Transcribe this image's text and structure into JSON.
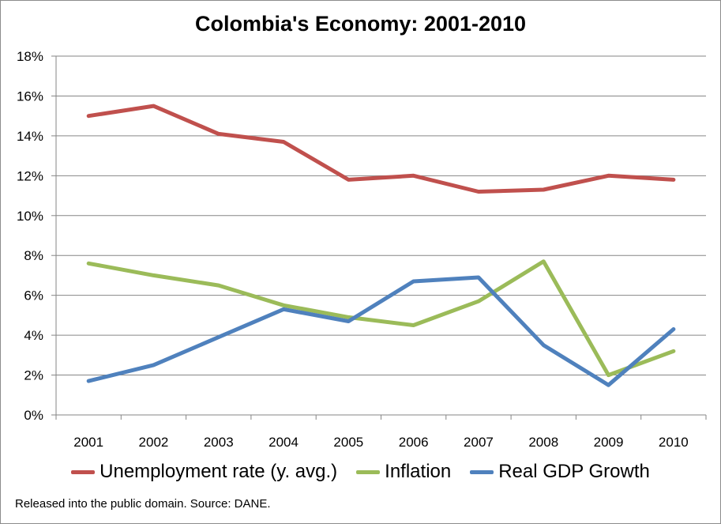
{
  "chart_data": {
    "type": "line",
    "title": "Colombia's Economy: 2001-2010",
    "categories": [
      "2001",
      "2002",
      "2003",
      "2004",
      "2005",
      "2006",
      "2007",
      "2008",
      "2009",
      "2010"
    ],
    "y_ticks": [
      "0%",
      "2%",
      "4%",
      "6%",
      "8%",
      "10%",
      "12%",
      "14%",
      "16%",
      "18%"
    ],
    "ylim": [
      0,
      18
    ],
    "y_unit": "%",
    "grid": true,
    "legend_position": "bottom",
    "series": [
      {
        "name": "Unemployment rate (y. avg.)",
        "color": "#c0504d",
        "values": [
          15.0,
          15.5,
          14.1,
          13.7,
          11.8,
          12.0,
          11.2,
          11.3,
          12.0,
          11.8
        ]
      },
      {
        "name": "Inflation",
        "color": "#9bbb59",
        "values": [
          7.6,
          7.0,
          6.5,
          5.5,
          4.9,
          4.5,
          5.7,
          7.7,
          2.0,
          3.2
        ]
      },
      {
        "name": "Real GDP Growth",
        "color": "#4f81bd",
        "values": [
          1.7,
          2.5,
          3.9,
          5.3,
          4.7,
          6.7,
          6.9,
          3.5,
          1.5,
          4.3
        ]
      }
    ]
  },
  "footnote": "Released into the public domain. Source: DANE."
}
